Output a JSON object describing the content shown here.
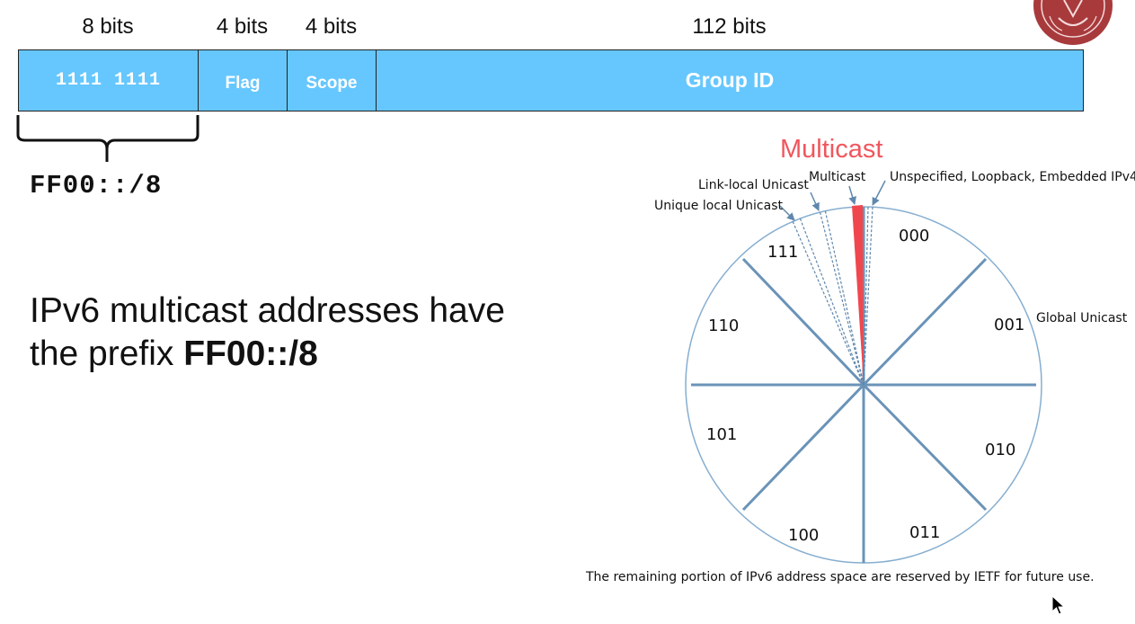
{
  "format": {
    "bit_widths": [
      "8 bits",
      "4 bits",
      "4 bits",
      "112 bits"
    ],
    "fields": [
      "1111 1111",
      "Flag",
      "Scope",
      "Group ID"
    ],
    "prefix_label": "FF00::/8"
  },
  "headline": {
    "line1": "IPv6 multicast addresses have",
    "line2_prefix": "the prefix ",
    "line2_bold": "FF00::/8"
  },
  "space_diagram": {
    "title": "Multicast",
    "sectors": [
      "000",
      "001",
      "010",
      "011",
      "100",
      "101",
      "110",
      "111"
    ],
    "callouts": {
      "link_local": "Link-local Unicast",
      "multicast": "Multicast",
      "unspecified": "Unspecified, Loopback, Embedded IPv4",
      "unique_local": "Unique local Unicast",
      "global_unicast": "Global Unicast"
    },
    "highlight_color": "#f0474f",
    "caption": "The remaining portion of IPv6 address space are reserved by IETF for future use."
  },
  "icons": [
    "university-seal-icon",
    "mouse-cursor-icon"
  ]
}
